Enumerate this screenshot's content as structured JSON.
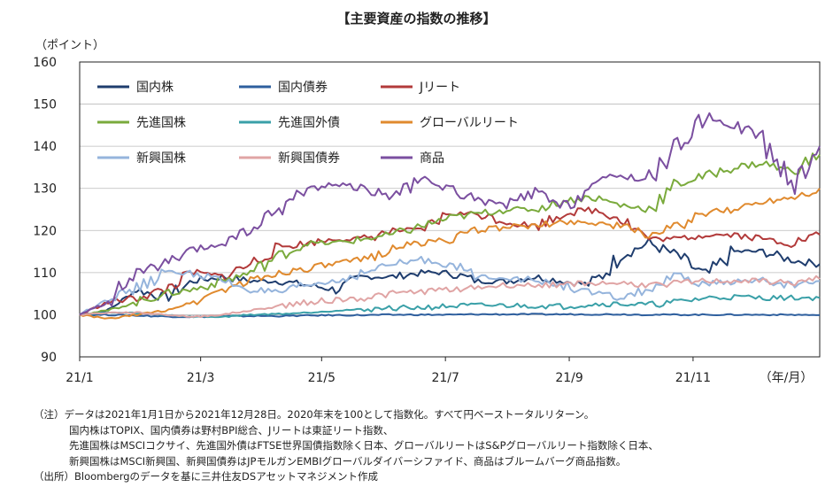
{
  "chart_data": {
    "type": "line",
    "title": "【主要資産の指数の推移】",
    "ylabel": "（ポイント）",
    "xlabel": "（年/月）",
    "ylim": [
      90,
      160
    ],
    "yticks": [
      90,
      100,
      110,
      120,
      130,
      140,
      150,
      160
    ],
    "xticks": [
      {
        "label": "21/1",
        "week": 0
      },
      {
        "label": "21/3",
        "week": 8.5
      },
      {
        "label": "21/5",
        "week": 17
      },
      {
        "label": "21/7",
        "week": 25.7
      },
      {
        "label": "21/9",
        "week": 34.4
      },
      {
        "label": "21/11",
        "week": 43.1
      }
    ],
    "x_weeks": [
      0,
      2,
      4,
      6,
      8,
      10,
      12,
      14,
      16,
      18,
      20,
      22,
      24,
      26,
      28,
      30,
      32,
      34,
      36,
      38,
      40,
      42,
      44,
      46,
      48,
      50,
      52
    ],
    "series": [
      {
        "name": "国内株",
        "color": "#1f3d6e",
        "values": [
          100,
          101,
          106,
          104,
          108,
          109,
          108,
          108,
          107,
          106,
          109,
          109,
          110,
          110,
          108,
          108,
          109,
          108,
          107,
          114,
          117,
          114,
          109,
          115,
          115,
          113,
          112
        ]
      },
      {
        "name": "国内債券",
        "color": "#2e5f9e",
        "values": [
          100,
          100,
          99.8,
          99.6,
          99.5,
          99.6,
          99.7,
          99.7,
          99.8,
          99.9,
          99.9,
          100,
          100,
          100,
          100.1,
          100.1,
          100.1,
          100.1,
          100.1,
          100.1,
          100,
          100,
          100,
          100,
          100,
          100,
          99.9
        ]
      },
      {
        "name": "Jリート",
        "color": "#b23a3a",
        "values": [
          100,
          103,
          104,
          106,
          110,
          109,
          112,
          116,
          117,
          118,
          118,
          120,
          120,
          124,
          124,
          122,
          121,
          124,
          125,
          123,
          118,
          118,
          119,
          119,
          118,
          117,
          119
        ]
      },
      {
        "name": "先進国株",
        "color": "#7aaa3c",
        "values": [
          100,
          101,
          103,
          105,
          106,
          108,
          110,
          114,
          117,
          117,
          118,
          119,
          121,
          123,
          124,
          125,
          125,
          127,
          128,
          126,
          125,
          131,
          133,
          135,
          136,
          134,
          138
        ]
      },
      {
        "name": "先進国外債",
        "color": "#3aa0a8",
        "values": [
          100,
          100.5,
          100.4,
          100,
          99.5,
          99.5,
          100,
          100.2,
          100.5,
          101,
          101.3,
          101.6,
          101.7,
          102,
          102.2,
          102.2,
          102.1,
          102,
          102.5,
          102.6,
          102.3,
          103,
          104,
          104.2,
          104,
          104,
          104
        ]
      },
      {
        "name": "グローバルリート",
        "color": "#e08a2e",
        "values": [
          100,
          99,
          100,
          101,
          103,
          106,
          108,
          110,
          111,
          112,
          113,
          116,
          117,
          118,
          120,
          121,
          121,
          122,
          122,
          121,
          119,
          121,
          124,
          125,
          127,
          128,
          130
        ]
      },
      {
        "name": "新興国株",
        "color": "#95b4dc",
        "values": [
          100,
          104,
          106,
          110,
          110,
          108,
          106,
          105,
          107,
          108,
          110,
          112,
          113,
          112,
          109,
          109,
          108,
          107,
          105,
          104,
          106,
          109,
          107,
          108,
          108,
          107,
          108
        ]
      },
      {
        "name": "新興国債券",
        "color": "#e0a4a4",
        "values": [
          100,
          100.5,
          100.5,
          100,
          99.5,
          100,
          101,
          102,
          103,
          103.5,
          104,
          105,
          105.5,
          106,
          106.5,
          107,
          107,
          107.2,
          107.5,
          107.5,
          107,
          107.5,
          108,
          108,
          108,
          107.5,
          108.5
        ]
      },
      {
        "name": "商品",
        "color": "#7b4fa0",
        "values": [
          100,
          103,
          110,
          112,
          115,
          117,
          120,
          125,
          130,
          131,
          130,
          128,
          132,
          130,
          127,
          126,
          129,
          125,
          131,
          133,
          132,
          140,
          147,
          145,
          142,
          130,
          140
        ]
      }
    ]
  },
  "notes": {
    "line1": "（注）データは2021年1月1日から2021年12月28日。2020年末を100として指数化。すべて円ベーストータルリターン。",
    "line2": "国内株はTOPIX、国内債券は野村BPI総合、Jリートは東証リート指数、",
    "line3": "先進国株はMSCIコクサイ、先進国外債はFTSE世界国債指数除く日本、グローバルリートはS&Pグローバルリート指数除く日本、",
    "line4": "新興国株はMSCI新興国、新興国債券はJPモルガンEMBIグローバルダイバーシファイド、商品はブルームバーグ商品指数。",
    "source": "（出所）Bloombergのデータを基に三井住友DSアセットマネジメント作成"
  }
}
